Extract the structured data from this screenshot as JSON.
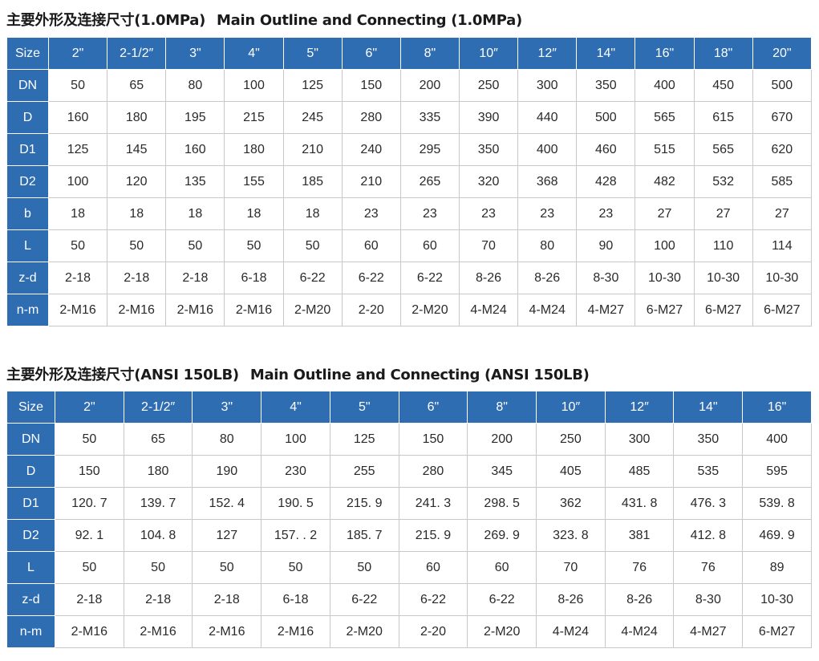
{
  "colors": {
    "header_bg": "#2f6db3",
    "header_text": "#ffffff",
    "grid": "#c8c8c8"
  },
  "section1": {
    "title_cn": "主要外形及连接尺寸(1.0MPa)",
    "title_en": "Main Outline and Connecting (1.0MPa)",
    "header": [
      "Size",
      "2\"",
      "2-1/2″",
      "3\"",
      "4\"",
      "5\"",
      "6\"",
      "8\"",
      "10″",
      "12″",
      "14\"",
      "16\"",
      "18\"",
      "20\""
    ],
    "rows": [
      [
        "DN",
        "50",
        "65",
        "80",
        "100",
        "125",
        "150",
        "200",
        "250",
        "300",
        "350",
        "400",
        "450",
        "500"
      ],
      [
        "D",
        "160",
        "180",
        "195",
        "215",
        "245",
        "280",
        "335",
        "390",
        "440",
        "500",
        "565",
        "615",
        "670"
      ],
      [
        "D1",
        "125",
        "145",
        "160",
        "180",
        "210",
        "240",
        "295",
        "350",
        "400",
        "460",
        "515",
        "565",
        "620"
      ],
      [
        "D2",
        "100",
        "120",
        "135",
        "155",
        "185",
        "210",
        "265",
        "320",
        "368",
        "428",
        "482",
        "532",
        "585"
      ],
      [
        "b",
        "18",
        "18",
        "18",
        "18",
        "18",
        "23",
        "23",
        "23",
        "23",
        "23",
        "27",
        "27",
        "27"
      ],
      [
        "L",
        "50",
        "50",
        "50",
        "50",
        "50",
        "60",
        "60",
        "70",
        "80",
        "90",
        "100",
        "110",
        "114"
      ],
      [
        "z-d",
        "2-18",
        "2-18",
        "2-18",
        "6-18",
        "6-22",
        "6-22",
        "6-22",
        "8-26",
        "8-26",
        "8-30",
        "10-30",
        "10-30",
        "10-30"
      ],
      [
        "n-m",
        "2-M16",
        "2-M16",
        "2-M16",
        "2-M16",
        "2-M20",
        "2-20",
        "2-M20",
        "4-M24",
        "4-M24",
        "4-M27",
        "6-M27",
        "6-M27",
        "6-M27"
      ]
    ]
  },
  "section2": {
    "title_cn": "主要外形及连接尺寸(ANSI 150LB)",
    "title_en": "Main Outline and Connecting (ANSI 150LB)",
    "header": [
      "Size",
      "2\"",
      "2-1/2″",
      "3\"",
      "4\"",
      "5\"",
      "6\"",
      "8\"",
      "10″",
      "12″",
      "14\"",
      "16\""
    ],
    "rows": [
      [
        "DN",
        "50",
        "65",
        "80",
        "100",
        "125",
        "150",
        "200",
        "250",
        "300",
        "350",
        "400"
      ],
      [
        "D",
        "150",
        "180",
        "190",
        "230",
        "255",
        "280",
        "345",
        "405",
        "485",
        "535",
        "595"
      ],
      [
        "D1",
        "120. 7",
        "139. 7",
        "152. 4",
        "190. 5",
        "215. 9",
        "241. 3",
        "298. 5",
        "362",
        "431. 8",
        "476. 3",
        "539. 8"
      ],
      [
        "D2",
        "92. 1",
        "104. 8",
        "127",
        "157. . 2",
        "185. 7",
        "215. 9",
        "269. 9",
        "323. 8",
        "381",
        "412. 8",
        "469. 9"
      ],
      [
        "L",
        "50",
        "50",
        "50",
        "50",
        "50",
        "60",
        "60",
        "70",
        "76",
        "76",
        "89"
      ],
      [
        "z-d",
        "2-18",
        "2-18",
        "2-18",
        "6-18",
        "6-22",
        "6-22",
        "6-22",
        "8-26",
        "8-26",
        "8-30",
        "10-30"
      ],
      [
        "n-m",
        "2-M16",
        "2-M16",
        "2-M16",
        "2-M16",
        "2-M20",
        "2-20",
        "2-M20",
        "4-M24",
        "4-M24",
        "4-M27",
        "6-M27"
      ]
    ]
  }
}
